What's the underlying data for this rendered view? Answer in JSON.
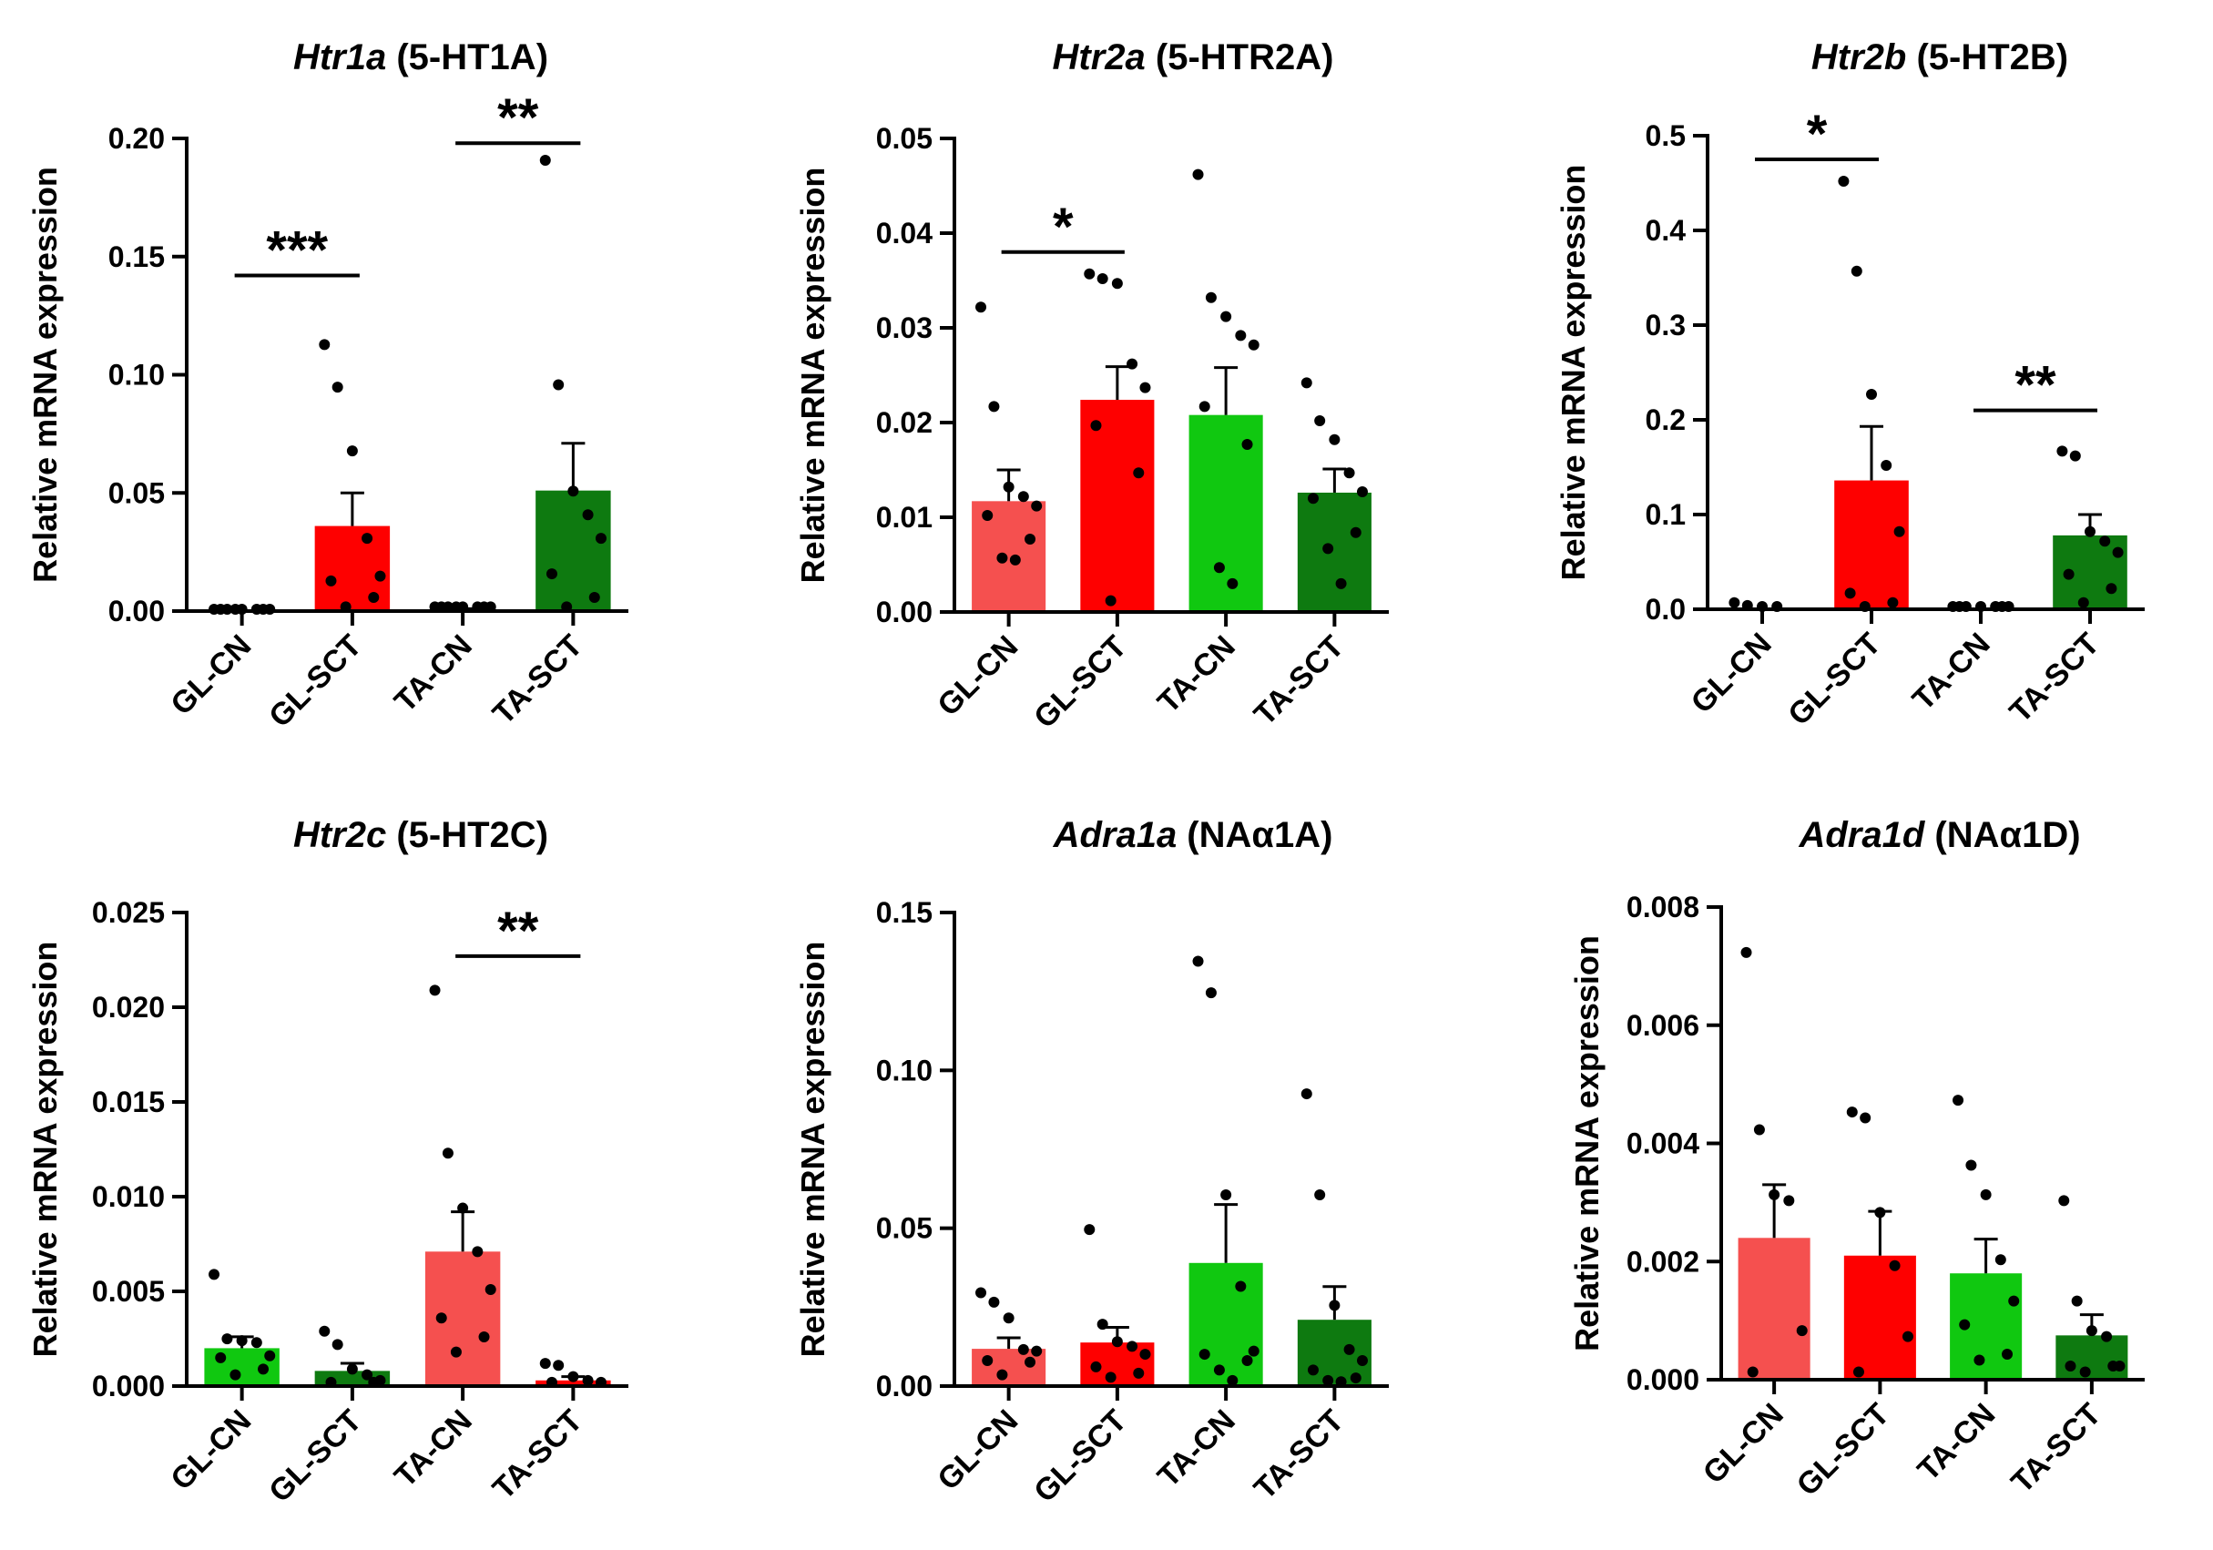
{
  "figure": {
    "colors": {
      "gl_cn": "#f5504f",
      "gl_sct": "#fe0000",
      "ta_cn": "#10c810",
      "ta_sct": "#0e7a10",
      "error": "#000000",
      "points": "#000000"
    }
  },
  "chart_data": [
    {
      "type": "bar",
      "title_gene": "Htr1a",
      "title_protein": "(5-HT1A)",
      "ylabel": "Relative mRNA expression",
      "categories": [
        "GL-CN",
        "GL-SCT",
        "TA-CN",
        "TA-SCT"
      ],
      "colors": [
        "#f5504f",
        "#fe0000",
        "#10c810",
        "#0e7a10"
      ],
      "ylim": [
        0,
        0.2
      ],
      "yticks": [
        0,
        0.05,
        0.1,
        0.15,
        0.2
      ],
      "ytick_labels": [
        "0.00",
        "0.05",
        "0.10",
        "0.15",
        "0.20"
      ],
      "values": [
        0.0,
        0.036,
        0.0005,
        0.051
      ],
      "errors": [
        0.0,
        0.014,
        0.0005,
        0.02
      ],
      "points": [
        [
          0,
          0,
          0,
          0,
          0,
          0,
          0,
          0
        ],
        [
          0.112,
          0.094,
          0.067,
          0.03,
          0.014,
          0.012,
          0.005,
          0.001
        ],
        [
          0.001,
          0.001,
          0.001,
          0.001,
          0.001,
          0.001,
          0.001,
          0.001
        ],
        [
          0.19,
          0.095,
          0.05,
          0.04,
          0.03,
          0.015,
          0.005,
          0.001
        ]
      ],
      "significance": [
        {
          "from": 0,
          "to": 1,
          "label": "***",
          "y": 0.142
        },
        {
          "from": 2,
          "to": 3,
          "label": "**",
          "y": 0.198
        }
      ]
    },
    {
      "type": "bar",
      "title_gene": "Htr2a",
      "title_protein": "(5-HTR2A)",
      "ylabel": "Relative mRNA expression",
      "categories": [
        "GL-CN",
        "GL-SCT",
        "TA-CN",
        "TA-SCT"
      ],
      "colors": [
        "#f5504f",
        "#fe0000",
        "#10c810",
        "#0e7a10"
      ],
      "ylim": [
        0,
        0.05
      ],
      "yticks": [
        0,
        0.01,
        0.02,
        0.03,
        0.04,
        0.05
      ],
      "ytick_labels": [
        "0.00",
        "0.01",
        "0.02",
        "0.03",
        "0.04",
        "0.05"
      ],
      "values": [
        0.0117,
        0.0224,
        0.0208,
        0.0126
      ],
      "errors": [
        0.0033,
        0.0035,
        0.005,
        0.0025
      ],
      "points": [
        [
          0.032,
          0.0215,
          0.013,
          0.012,
          0.011,
          0.01,
          0.0075,
          0.0055,
          0.0053
        ],
        [
          0.0355,
          0.035,
          0.0345,
          0.026,
          0.0235,
          0.0195,
          0.0145,
          0.001
        ],
        [
          0.046,
          0.033,
          0.031,
          0.029,
          0.028,
          0.0215,
          0.0175,
          0.0045,
          0.0028
        ],
        [
          0.024,
          0.02,
          0.018,
          0.0145,
          0.0125,
          0.0118,
          0.0082,
          0.0065,
          0.0028
        ]
      ],
      "significance": [
        {
          "from": 0,
          "to": 1,
          "label": "*",
          "y": 0.038
        }
      ]
    },
    {
      "type": "bar",
      "title_gene": "Htr2b",
      "title_protein": "(5-HT2B)",
      "ylabel": "Relative mRNA expression",
      "categories": [
        "GL-CN",
        "GL-SCT",
        "TA-CN",
        "TA-SCT"
      ],
      "colors": [
        "#f5504f",
        "#fe0000",
        "#10c810",
        "#0e7a10"
      ],
      "ylim": [
        0,
        0.5
      ],
      "yticks": [
        0,
        0.1,
        0.2,
        0.3,
        0.4,
        0.5
      ],
      "ytick_labels": [
        "0.0",
        "0.1",
        "0.2",
        "0.3",
        "0.4",
        "0.5"
      ],
      "values": [
        0.0,
        0.136,
        0.0,
        0.078
      ],
      "errors": [
        0.0,
        0.057,
        0.0,
        0.022
      ],
      "points": [
        [
          0.005,
          0.002,
          0.001,
          0.001
        ],
        [
          0.45,
          0.355,
          0.225,
          0.15,
          0.08,
          0.015,
          0.005,
          0.001
        ],
        [
          0.001,
          0.001,
          0.001,
          0.001,
          0.001,
          0.001,
          0.001
        ],
        [
          0.165,
          0.16,
          0.08,
          0.07,
          0.058,
          0.035,
          0.02,
          0.005
        ]
      ],
      "significance": [
        {
          "from": 0,
          "to": 1,
          "label": "*",
          "y": 0.475
        },
        {
          "from": 2,
          "to": 3,
          "label": "**",
          "y": 0.21
        }
      ]
    },
    {
      "type": "bar",
      "title_gene": "Htr2c",
      "title_protein": "(5-HT2C)",
      "ylabel": "Relative mRNA expression",
      "categories": [
        "GL-CN",
        "GL-SCT",
        "TA-CN",
        "TA-SCT"
      ],
      "colors": [
        "#10c810",
        "#0e7a10",
        "#f5504f",
        "#fe0000"
      ],
      "ylim": [
        0,
        0.025
      ],
      "yticks": [
        0,
        0.005,
        0.01,
        0.015,
        0.02,
        0.025
      ],
      "ytick_labels": [
        "0.000",
        "0.005",
        "0.010",
        "0.015",
        "0.020",
        "0.025"
      ],
      "values": [
        0.002,
        0.0008,
        0.0071,
        0.0003
      ],
      "errors": [
        0.0006,
        0.0004,
        0.0021,
        0.0002
      ],
      "points": [
        [
          0.0058,
          0.0024,
          0.0023,
          0.0022,
          0.0015,
          0.0014,
          0.0008,
          0.0005
        ],
        [
          0.0028,
          0.0021,
          0.0008,
          0.0005,
          0.0002,
          0.0001,
          0.0001
        ],
        [
          0.0208,
          0.0122,
          0.0093,
          0.007,
          0.005,
          0.0035,
          0.0025,
          0.0017
        ],
        [
          0.0011,
          0.001,
          0.0004,
          0.0002,
          0.0001,
          0.0001
        ]
      ],
      "significance": [
        {
          "from": 2,
          "to": 3,
          "label": "**",
          "y": 0.0227
        }
      ]
    },
    {
      "type": "bar",
      "title_gene": "Adra1a",
      "title_protein": "(NAα1A)",
      "ylabel": "Relative mRNA expression",
      "categories": [
        "GL-CN",
        "GL-SCT",
        "TA-CN",
        "TA-SCT"
      ],
      "colors": [
        "#f5504f",
        "#fe0000",
        "#10c810",
        "#0e7a10"
      ],
      "ylim": [
        0,
        0.15
      ],
      "yticks": [
        0,
        0.05,
        0.1,
        0.15
      ],
      "ytick_labels": [
        "0.00",
        "0.05",
        "0.10",
        "0.15"
      ],
      "values": [
        0.0118,
        0.0138,
        0.039,
        0.021
      ],
      "errors": [
        0.0035,
        0.0048,
        0.0185,
        0.0105
      ],
      "points": [
        [
          0.029,
          0.026,
          0.021,
          0.011,
          0.0105,
          0.0075,
          0.007,
          0.003
        ],
        [
          0.049,
          0.019,
          0.0135,
          0.012,
          0.0095,
          0.0055,
          0.0035,
          0.0022
        ],
        [
          0.134,
          0.124,
          0.06,
          0.031,
          0.0105,
          0.0095,
          0.0075,
          0.0045,
          0.0012
        ],
        [
          0.092,
          0.06,
          0.025,
          0.011,
          0.0075,
          0.0045,
          0.002,
          0.0012,
          0.0008
        ]
      ],
      "significance": []
    },
    {
      "type": "bar",
      "title_gene": "Adra1d",
      "title_protein": "(NAα1D)",
      "ylabel": "Relative mRNA expression",
      "categories": [
        "GL-CN",
        "GL-SCT",
        "TA-CN",
        "TA-SCT"
      ],
      "colors": [
        "#f5504f",
        "#fe0000",
        "#10c810",
        "#0e7a10"
      ],
      "ylim": [
        0,
        0.008
      ],
      "yticks": [
        0,
        0.002,
        0.004,
        0.006,
        0.008
      ],
      "ytick_labels": [
        "0.000",
        "0.002",
        "0.004",
        "0.006",
        "0.008"
      ],
      "values": [
        0.0024,
        0.0021,
        0.0018,
        0.00075
      ],
      "errors": [
        0.0009,
        0.00075,
        0.00058,
        0.00035
      ],
      "points": [
        [
          0.0072,
          0.0042,
          0.0031,
          0.003,
          0.0008,
          0.0001
        ],
        [
          0.0045,
          0.0044,
          0.0028,
          0.0019,
          0.0007,
          0.0001
        ],
        [
          0.0047,
          0.0036,
          0.0031,
          0.002,
          0.0013,
          0.0009,
          0.0004,
          0.0003
        ],
        [
          0.003,
          0.0013,
          0.0008,
          0.0007,
          0.0002,
          0.0002,
          0.0002,
          0.0001
        ]
      ],
      "significance": []
    }
  ]
}
